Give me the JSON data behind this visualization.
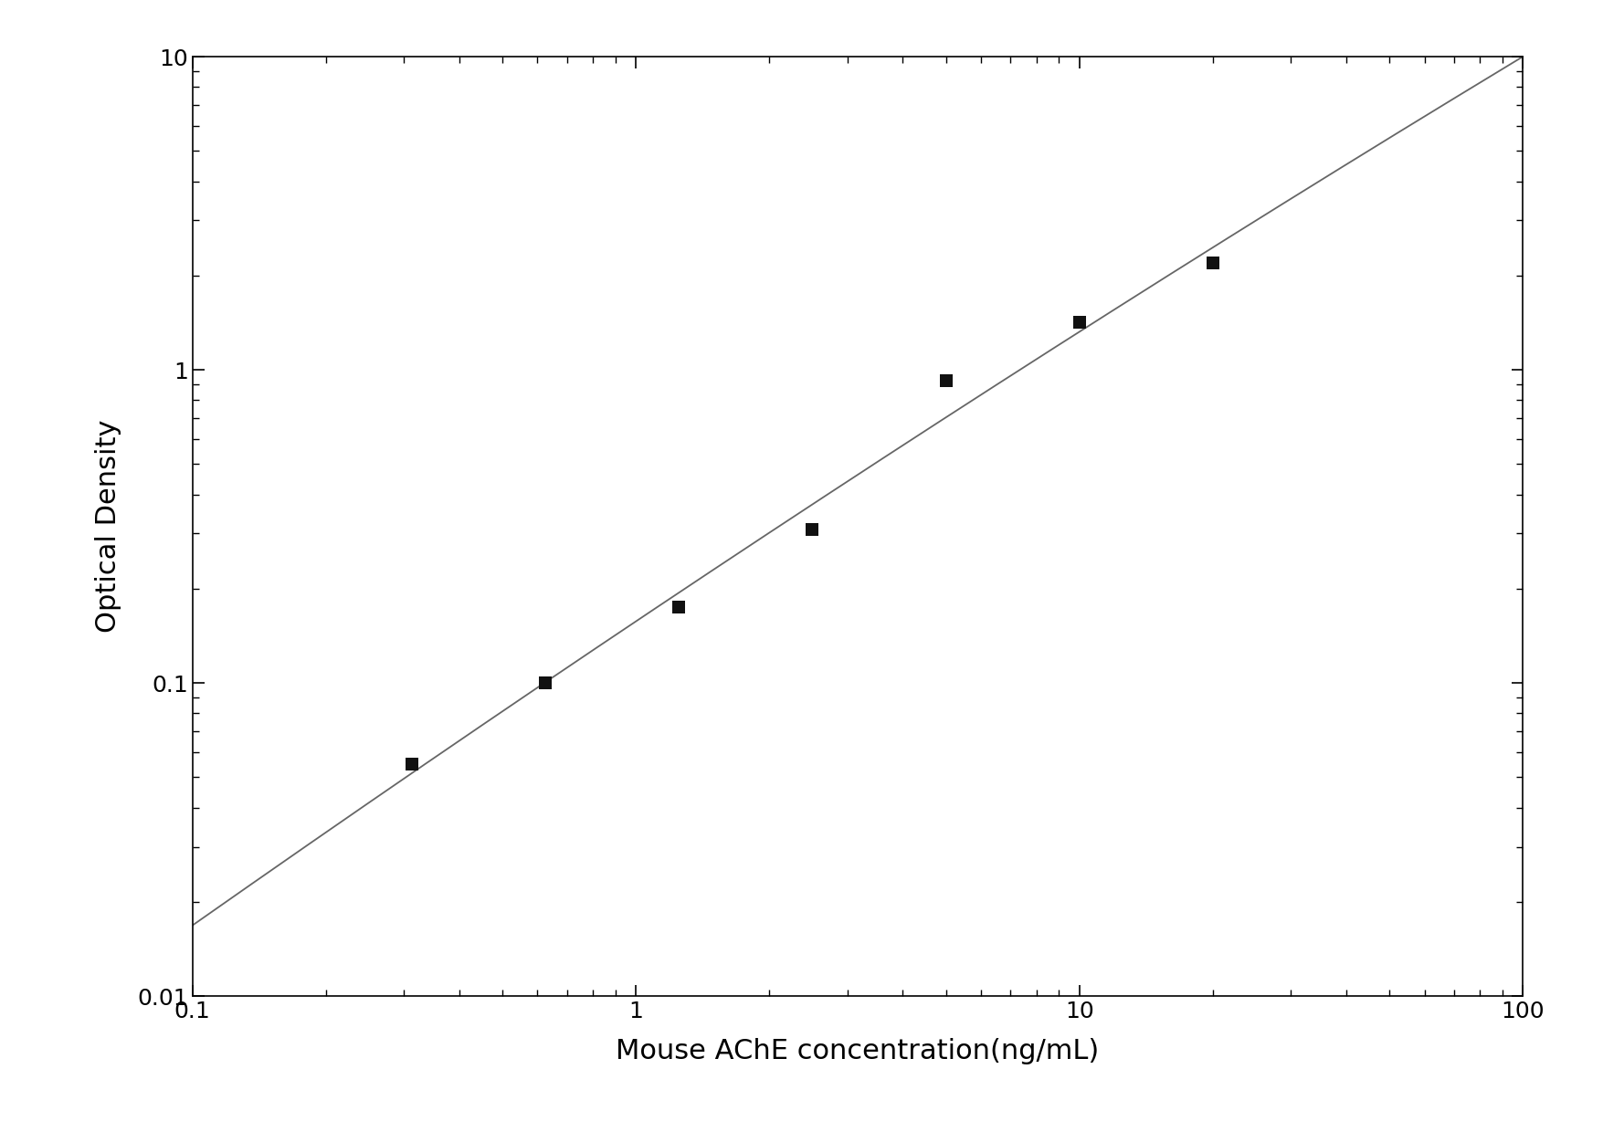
{
  "x_data": [
    0.313,
    0.625,
    1.25,
    2.5,
    5.0,
    10.0,
    20.0
  ],
  "y_data": [
    0.055,
    0.1,
    0.175,
    0.31,
    0.92,
    1.42,
    2.2
  ],
  "xlabel": "Mouse AChE concentration(ng/mL)",
  "ylabel": "Optical Density",
  "xlim": [
    0.1,
    100
  ],
  "ylim": [
    0.01,
    10
  ],
  "line_color": "#666666",
  "marker_color": "#111111",
  "marker_size": 10,
  "line_width": 1.3,
  "background_color": "#ffffff",
  "font_size_label": 22,
  "font_size_tick": 18,
  "ytick_labels": [
    "0.01",
    "0.1",
    "1",
    "10"
  ],
  "ytick_values": [
    0.01,
    0.1,
    1,
    10
  ],
  "xtick_labels": [
    "0.1",
    "1",
    "10",
    "100"
  ],
  "xtick_values": [
    0.1,
    1,
    10,
    100
  ]
}
